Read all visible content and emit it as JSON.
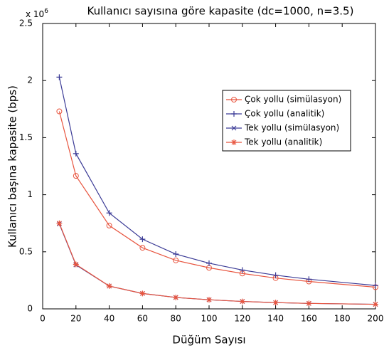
{
  "chart_data": {
    "type": "line",
    "title": "Kullanıcı sayısına göre kapasite (dc=1000, n=3.5)",
    "x_label": "Düğüm Sayısı",
    "y_label": "Kullanıcı başına kapasite (bps)",
    "y_multiplier": {
      "base": "x 10",
      "exponent": "6"
    },
    "x": [
      10,
      20,
      40,
      60,
      80,
      100,
      120,
      140,
      160,
      200
    ],
    "xlim": [
      0,
      200
    ],
    "xticks": [
      0,
      20,
      40,
      60,
      80,
      100,
      120,
      140,
      160,
      180,
      200
    ],
    "ylim": [
      0,
      2.5
    ],
    "yticks": [
      0,
      0.5,
      1,
      1.5,
      2,
      2.5
    ],
    "grid": false,
    "series": [
      {
        "name": "Çok yollu (simülasyon)",
        "color": "#e8553f",
        "marker": "circle",
        "values": [
          1.73,
          1.165,
          0.73,
          0.535,
          0.425,
          0.36,
          0.31,
          0.27,
          0.24,
          0.19
        ]
      },
      {
        "name": "Çok yollu (analitik)",
        "color": "#3b3b96",
        "marker": "plus",
        "values": [
          2.03,
          1.36,
          0.84,
          0.61,
          0.48,
          0.4,
          0.34,
          0.295,
          0.26,
          0.205
        ]
      },
      {
        "name": "Tek yollu (simülasyon)",
        "color": "#3b3b96",
        "marker": "x",
        "values": [
          0.745,
          0.385,
          0.2,
          0.135,
          0.1,
          0.08,
          0.065,
          0.055,
          0.048,
          0.04
        ]
      },
      {
        "name": "Tek yollu (analitik)",
        "color": "#e8553f",
        "marker": "star",
        "values": [
          0.75,
          0.39,
          0.2,
          0.135,
          0.1,
          0.08,
          0.065,
          0.055,
          0.048,
          0.04
        ]
      }
    ]
  }
}
